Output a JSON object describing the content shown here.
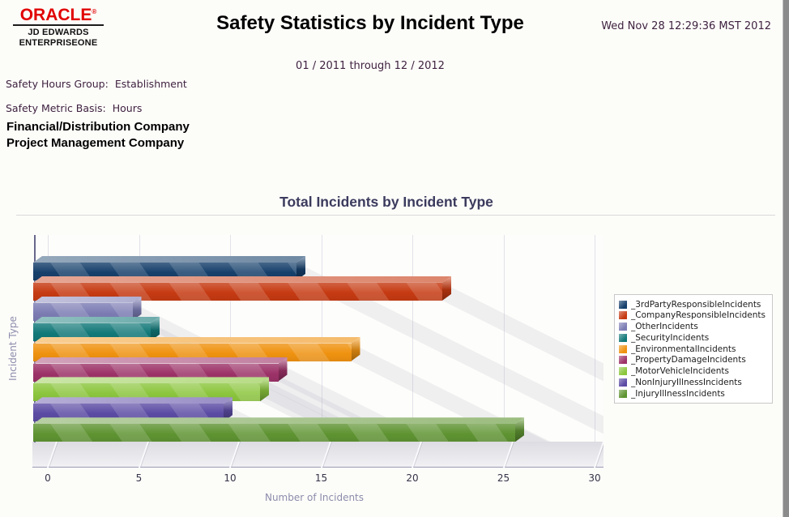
{
  "header": {
    "logo_brand": "ORACLE",
    "logo_line1": "JD EDWARDS",
    "logo_line2": "ENTERPRISEONE",
    "title": "Safety Statistics by Incident Type",
    "timestamp": "Wed Nov 28 12:29:36 MST 2012",
    "period": "01 / 2011  through  12 / 2012"
  },
  "report_info": {
    "hours_group_label": "Safety Hours Group:",
    "hours_group_value": "Establishment",
    "metric_basis_label": "Safety Metric Basis:",
    "metric_basis_value": "Hours",
    "companies": [
      "Financial/Distribution Company",
      "Project Management Company"
    ]
  },
  "chart_data": {
    "type": "bar",
    "orientation": "horizontal",
    "title": "Total Incidents by Incident Type",
    "xlabel": "Number of Incidents",
    "ylabel": "Incident Type",
    "xlim": [
      0,
      30
    ],
    "xticks": [
      0,
      5,
      10,
      15,
      20,
      25,
      30
    ],
    "grid": true,
    "legend_position": "right",
    "series": [
      {
        "name": "_3rdPartyResponsibleIncidents",
        "value": 14,
        "color": "#16406b"
      },
      {
        "name": "_CompanyResponsibleIncidents",
        "value": 22,
        "color": "#c63a12"
      },
      {
        "name": "_OtherIncidents",
        "value": 5,
        "color": "#7c7cb4"
      },
      {
        "name": "_SecurityIncidents",
        "value": 6,
        "color": "#127878"
      },
      {
        "name": "_EnvironmentalIncidents",
        "value": 17,
        "color": "#ef9210"
      },
      {
        "name": "_PropertyDamageIncidents",
        "value": 13,
        "color": "#9c3268"
      },
      {
        "name": "_MotorVehicleIncidents",
        "value": 12,
        "color": "#8cc63e"
      },
      {
        "name": "_NonInjuryIllnessIncidents",
        "value": 10,
        "color": "#5c4ba4"
      },
      {
        "name": "_InjuryIllnessIncidents",
        "value": 26,
        "color": "#5f9432"
      }
    ]
  }
}
